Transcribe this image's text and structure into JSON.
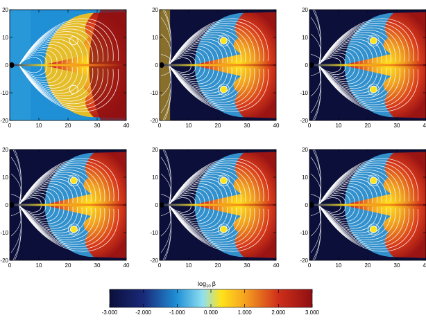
{
  "figure": {
    "panels": [
      {
        "id": "p1"
      },
      {
        "id": "p2"
      },
      {
        "id": "p3"
      },
      {
        "id": "p4"
      },
      {
        "id": "p5"
      },
      {
        "id": "p6"
      }
    ],
    "x_ticks": [
      "0",
      "10",
      "20",
      "30",
      "40"
    ],
    "y_ticks": [
      "20",
      "10",
      "0",
      "-10",
      "-20"
    ],
    "colorbar": {
      "label_main": "log",
      "label_sub": "10",
      "label_symbol": "β",
      "ticks": [
        "-3.000",
        "-2.000",
        "-1.000",
        "0.000",
        "1.000",
        "2.000",
        "3.000"
      ],
      "range": [
        -3,
        3
      ]
    },
    "colors": {
      "low": "#0b0f3a",
      "mid_blue": "#1f8fd6",
      "cyan": "#4cc3ff",
      "yellow": "#ffe31a",
      "orange": "#f07a1a",
      "high": "#8f0f12",
      "field_lines": "#ffffff"
    }
  }
}
